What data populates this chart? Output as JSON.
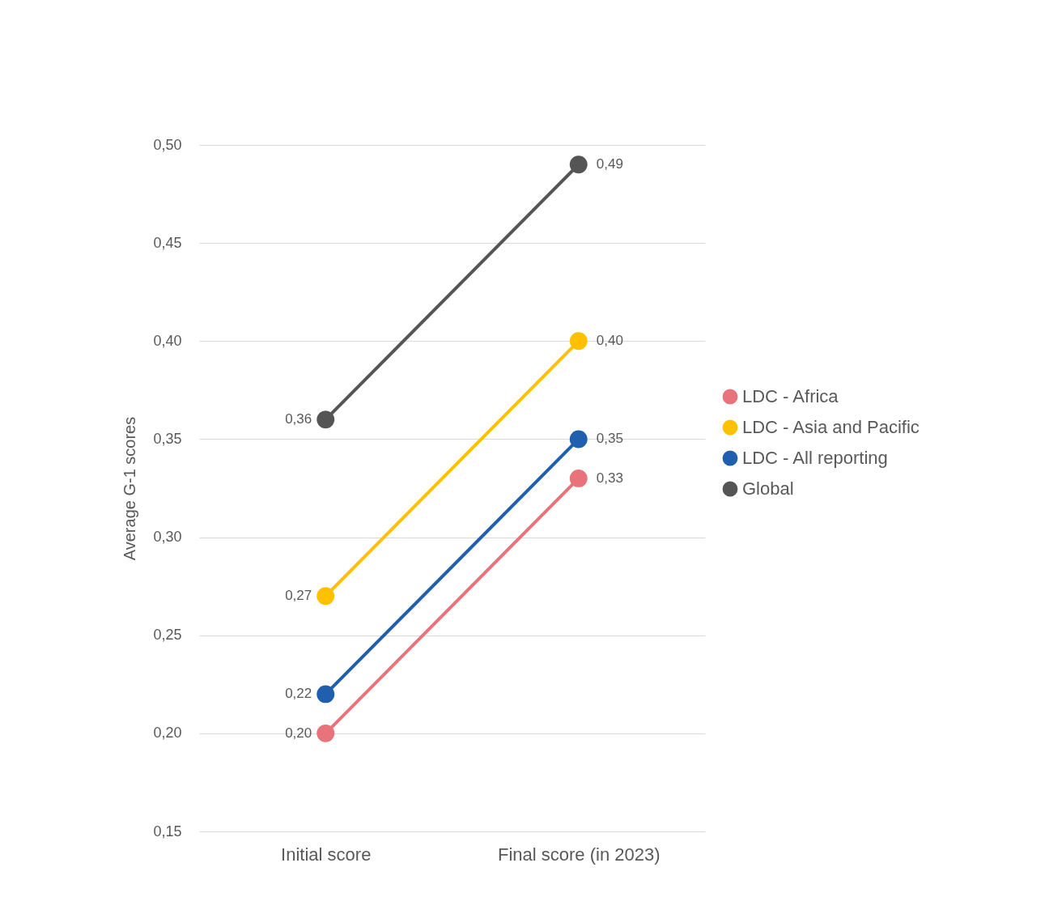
{
  "chart_data": {
    "type": "line",
    "ylabel": "Average G-1 scores",
    "categories": [
      "Initial score",
      "Final score (in 2023)"
    ],
    "series": [
      {
        "name": "LDC - Africa",
        "color": "#e8737a",
        "values": [
          0.2,
          0.33
        ],
        "value_labels": [
          "0,20",
          "0,33"
        ]
      },
      {
        "name": "LDC - Asia and Pacific",
        "color": "#ffc000",
        "values": [
          0.27,
          0.4
        ],
        "value_labels": [
          "0,27",
          "0,40"
        ]
      },
      {
        "name": "LDC - All reporting",
        "color": "#1f5fad",
        "values": [
          0.22,
          0.35
        ],
        "value_labels": [
          "0,22",
          "0,35"
        ]
      },
      {
        "name": "Global",
        "color": "#555555",
        "values": [
          0.36,
          0.49
        ],
        "value_labels": [
          "0,36",
          "0,49"
        ]
      }
    ],
    "ylim": [
      0.15,
      0.5
    ],
    "yticks": [
      {
        "value": 0.15,
        "label": "0,15"
      },
      {
        "value": 0.2,
        "label": "0,20"
      },
      {
        "value": 0.25,
        "label": "0,25"
      },
      {
        "value": 0.3,
        "label": "0,30"
      },
      {
        "value": 0.35,
        "label": "0,35"
      },
      {
        "value": 0.4,
        "label": "0,40"
      },
      {
        "value": 0.45,
        "label": "0,45"
      },
      {
        "value": 0.5,
        "label": "0,50"
      }
    ],
    "grid": "y",
    "legend": "right",
    "marker": "circle",
    "line_style": "solid"
  }
}
